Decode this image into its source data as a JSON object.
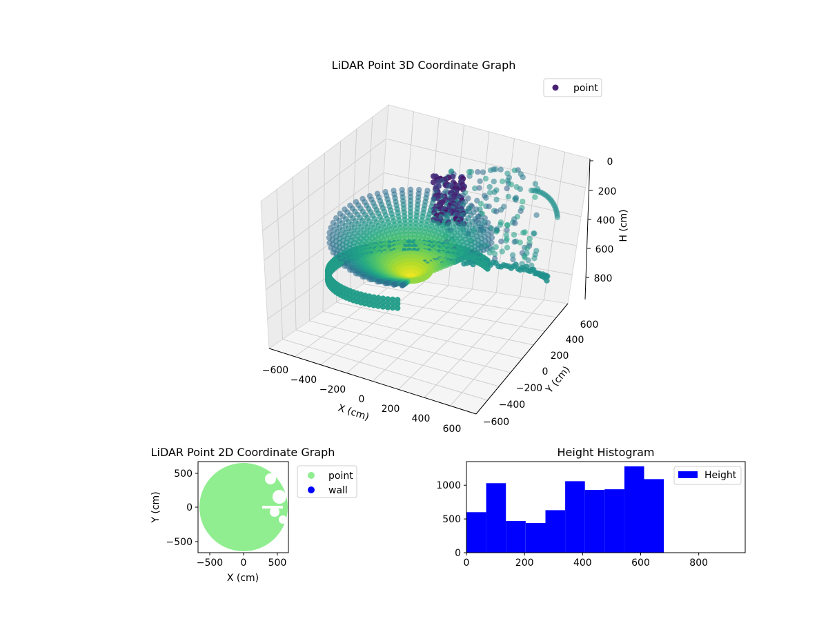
{
  "chart_data": [
    {
      "type": "scatter",
      "title": "LiDAR Point 3D Coordinate Graph",
      "xlabel": "X (cm)",
      "ylabel": "Y (cm)",
      "zlabel": "H (cm)",
      "xticks": [
        "−600",
        "−400",
        "−200",
        "0",
        "200",
        "400",
        "600"
      ],
      "yticks": [
        "−600",
        "−400",
        "−200",
        "0",
        "200",
        "400",
        "600"
      ],
      "zticks": [
        "0",
        "200",
        "400",
        "600",
        "800"
      ],
      "xlim": [
        -650,
        650
      ],
      "ylim": [
        -650,
        650
      ],
      "zlim": [
        0,
        950
      ],
      "z_inverted": true,
      "colormap": "viridis",
      "grid": true,
      "legend": {
        "entries": [
          "point"
        ],
        "position": "top-right",
        "marker_color": "#482173"
      }
    },
    {
      "type": "scatter",
      "title": "LiDAR Point 2D Coordinate Graph",
      "xlabel": "X (cm)",
      "ylabel": "Y (cm)",
      "xticks": [
        "−500",
        "0",
        "500"
      ],
      "yticks": [
        "500",
        "0",
        "−500"
      ],
      "xlim": [
        -680,
        680
      ],
      "ylim": [
        -680,
        680
      ],
      "series": [
        {
          "name": "point",
          "color": "#90ee90"
        },
        {
          "name": "wall",
          "color": "#0000ff"
        }
      ],
      "legend": {
        "position": "outside-right"
      }
    },
    {
      "type": "bar",
      "title": "Height Histogram",
      "xlabel": "",
      "ylabel": "",
      "xticks": [
        "0",
        "200",
        "400",
        "600",
        "800"
      ],
      "yticks": [
        "0",
        "500",
        "1000"
      ],
      "xlim": [
        0,
        960
      ],
      "ylim": [
        0,
        1350
      ],
      "bin_width": 68,
      "bin_starts": [
        0,
        68,
        136,
        204,
        272,
        340,
        408,
        476,
        544,
        612
      ],
      "values": [
        600,
        1030,
        470,
        440,
        630,
        1060,
        930,
        940,
        1280,
        1090
      ],
      "series": [
        {
          "name": "Height",
          "color": "#0000ff"
        }
      ],
      "legend": {
        "position": "top-right"
      }
    }
  ]
}
